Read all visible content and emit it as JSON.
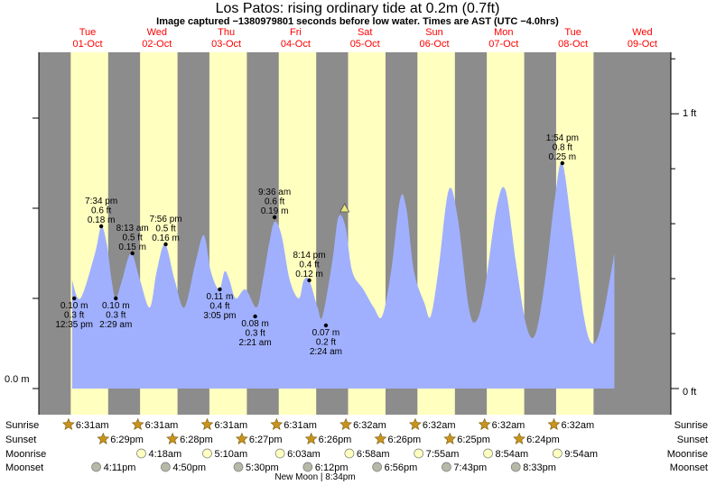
{
  "header": {
    "title": "Los Patos: rising  ordinary tide at 0.2m (0.7ft)",
    "subtitle": "Image captured −1380979801 seconds before low water. Times are AST (UTC −4.0hrs)"
  },
  "chart_data": {
    "type": "area",
    "days": [
      {
        "dow": "Tue",
        "date": "01-Oct"
      },
      {
        "dow": "Wed",
        "date": "02-Oct"
      },
      {
        "dow": "Thu",
        "date": "03-Oct"
      },
      {
        "dow": "Fri",
        "date": "04-Oct"
      },
      {
        "dow": "Sat",
        "date": "05-Oct"
      },
      {
        "dow": "Sun",
        "date": "06-Oct"
      },
      {
        "dow": "Mon",
        "date": "07-Oct"
      },
      {
        "dow": "Tue",
        "date": "08-Oct"
      },
      {
        "dow": "Wed",
        "date": "09-Oct"
      }
    ],
    "y_left_label": "0.0 m",
    "y_right_labels": [
      "1 ft",
      "0 ft"
    ],
    "ylim_m": [
      -0.01,
      0.37
    ],
    "tide_points": [
      {
        "day": 0.0,
        "h": 0.12
      },
      {
        "day": 0.12,
        "h": 0.1
      },
      {
        "day": 0.33,
        "h": 0.15
      },
      {
        "day": 0.42,
        "h": 0.18
      },
      {
        "day": 0.5,
        "h": 0.16
      },
      {
        "day": 0.57,
        "h": 0.12
      },
      {
        "day": 0.63,
        "h": 0.1
      },
      {
        "day": 0.72,
        "h": 0.12
      },
      {
        "day": 0.85,
        "h": 0.15
      },
      {
        "day": 0.98,
        "h": 0.12
      },
      {
        "day": 1.12,
        "h": 0.09
      },
      {
        "day": 1.22,
        "h": 0.13
      },
      {
        "day": 1.34,
        "h": 0.16
      },
      {
        "day": 1.48,
        "h": 0.12
      },
      {
        "day": 1.62,
        "h": 0.09
      },
      {
        "day": 1.78,
        "h": 0.14
      },
      {
        "day": 1.9,
        "h": 0.17
      },
      {
        "day": 2.0,
        "h": 0.13
      },
      {
        "day": 2.12,
        "h": 0.11
      },
      {
        "day": 2.2,
        "h": 0.13
      },
      {
        "day": 2.27,
        "h": 0.12
      },
      {
        "day": 2.36,
        "h": 0.1
      },
      {
        "day": 2.5,
        "h": 0.11
      },
      {
        "day": 2.66,
        "h": 0.09
      },
      {
        "day": 2.75,
        "h": 0.12
      },
      {
        "day": 2.84,
        "h": 0.16
      },
      {
        "day": 2.92,
        "h": 0.185
      },
      {
        "day": 3.02,
        "h": 0.17
      },
      {
        "day": 3.14,
        "h": 0.12
      },
      {
        "day": 3.27,
        "h": 0.1
      },
      {
        "day": 3.34,
        "h": 0.12
      },
      {
        "day": 3.42,
        "h": 0.12
      },
      {
        "day": 3.54,
        "h": 0.09
      },
      {
        "day": 3.61,
        "h": 0.08
      },
      {
        "day": 3.75,
        "h": 0.14
      },
      {
        "day": 3.84,
        "h": 0.19
      },
      {
        "day": 3.94,
        "h": 0.18
      },
      {
        "day": 4.04,
        "h": 0.13
      },
      {
        "day": 4.2,
        "h": 0.11
      },
      {
        "day": 4.35,
        "h": 0.09
      },
      {
        "day": 4.47,
        "h": 0.08
      },
      {
        "day": 4.6,
        "h": 0.13
      },
      {
        "day": 4.73,
        "h": 0.21
      },
      {
        "day": 4.82,
        "h": 0.2
      },
      {
        "day": 4.93,
        "h": 0.13
      },
      {
        "day": 5.08,
        "h": 0.095
      },
      {
        "day": 5.17,
        "h": 0.08
      },
      {
        "day": 5.28,
        "h": 0.13
      },
      {
        "day": 5.43,
        "h": 0.22
      },
      {
        "day": 5.56,
        "h": 0.19
      },
      {
        "day": 5.72,
        "h": 0.09
      },
      {
        "day": 5.83,
        "h": 0.075
      },
      {
        "day": 5.95,
        "h": 0.11
      },
      {
        "day": 6.12,
        "h": 0.2
      },
      {
        "day": 6.25,
        "h": 0.22
      },
      {
        "day": 6.4,
        "h": 0.14
      },
      {
        "day": 6.55,
        "h": 0.07
      },
      {
        "day": 6.68,
        "h": 0.06
      },
      {
        "day": 6.82,
        "h": 0.12
      },
      {
        "day": 6.96,
        "h": 0.21
      },
      {
        "day": 7.07,
        "h": 0.25
      },
      {
        "day": 7.22,
        "h": 0.17
      },
      {
        "day": 7.38,
        "h": 0.08
      },
      {
        "day": 7.5,
        "h": 0.05
      },
      {
        "day": 7.63,
        "h": 0.07
      },
      {
        "day": 7.82,
        "h": 0.15
      }
    ],
    "extremes": [
      {
        "day": 0.03,
        "h": 0.1,
        "pos": "below",
        "lines": [
          "0.10 m",
          "0.3 ft",
          "12:35 pm"
        ]
      },
      {
        "day": 0.42,
        "h": 0.18,
        "pos": "above",
        "lines": [
          "7:34 pm",
          "0.6 ft",
          "0.18 m"
        ]
      },
      {
        "day": 0.63,
        "h": 0.1,
        "pos": "below",
        "lines": [
          "0.10 m",
          "0.3 ft",
          "2:29 am"
        ]
      },
      {
        "day": 0.87,
        "h": 0.15,
        "pos": "above",
        "lines": [
          "8:13 am",
          "0.5 ft",
          "0.15 m"
        ]
      },
      {
        "day": 1.35,
        "h": 0.16,
        "pos": "above",
        "lines": [
          "7:56 pm",
          "0.5 ft",
          "0.16 m"
        ]
      },
      {
        "day": 2.13,
        "h": 0.11,
        "pos": "below",
        "lines": [
          "0.11 m",
          "0.4 ft",
          "3:05 pm"
        ]
      },
      {
        "day": 2.64,
        "h": 0.08,
        "pos": "below",
        "lines": [
          "0.08 m",
          "0.3 ft",
          "2:21 am"
        ]
      },
      {
        "day": 2.92,
        "h": 0.19,
        "pos": "above",
        "lines": [
          "9:36 am",
          "0.6 ft",
          "0.19 m"
        ]
      },
      {
        "day": 3.42,
        "h": 0.12,
        "pos": "above",
        "lines": [
          "8:14 pm",
          "0.4 ft",
          "0.12 m"
        ]
      },
      {
        "day": 3.66,
        "h": 0.07,
        "pos": "below",
        "lines": [
          "0.07 m",
          "0.2 ft",
          "2:24 am"
        ]
      },
      {
        "day": 7.07,
        "h": 0.25,
        "pos": "above",
        "lines": [
          "1:54 pm",
          "0.8 ft",
          "0.25 m"
        ]
      }
    ],
    "current_marker": {
      "day": 3.93,
      "h": 0.2
    },
    "rows": {
      "labels": [
        "Sunrise",
        "Sunset",
        "Moonrise",
        "Moonset"
      ],
      "sunrise": [
        {
          "day": 0.0,
          "t": "6:31am"
        },
        {
          "day": 1.0,
          "t": "6:31am"
        },
        {
          "day": 2.0,
          "t": "6:31am"
        },
        {
          "day": 3.0,
          "t": "6:31am"
        },
        {
          "day": 4.0,
          "t": "6:32am"
        },
        {
          "day": 5.0,
          "t": "6:32am"
        },
        {
          "day": 6.0,
          "t": "6:32am"
        },
        {
          "day": 7.0,
          "t": "6:32am"
        }
      ],
      "sunset": [
        {
          "day": 0.5,
          "t": "6:29pm"
        },
        {
          "day": 1.5,
          "t": "6:28pm"
        },
        {
          "day": 2.5,
          "t": "6:27pm"
        },
        {
          "day": 3.5,
          "t": "6:26pm"
        },
        {
          "day": 4.5,
          "t": "6:26pm"
        },
        {
          "day": 5.5,
          "t": "6:25pm"
        },
        {
          "day": 6.5,
          "t": "6:24pm"
        }
      ],
      "moonrise": [
        {
          "day": 1.05,
          "t": "4:18am"
        },
        {
          "day": 2.0,
          "t": "5:10am"
        },
        {
          "day": 3.05,
          "t": "6:03am"
        },
        {
          "day": 4.05,
          "t": "6:58am"
        },
        {
          "day": 5.05,
          "t": "7:55am"
        },
        {
          "day": 6.05,
          "t": "8:54am"
        },
        {
          "day": 7.05,
          "t": "9:54am"
        }
      ],
      "moonset": [
        {
          "day": 0.4,
          "t": "4:11pm"
        },
        {
          "day": 1.4,
          "t": "4:50pm"
        },
        {
          "day": 2.45,
          "t": "5:30pm"
        },
        {
          "day": 3.45,
          "t": "6:12pm"
        },
        {
          "day": 4.45,
          "t": "6:56pm"
        },
        {
          "day": 5.45,
          "t": "7:43pm"
        },
        {
          "day": 6.45,
          "t": "8:33pm"
        }
      ]
    },
    "note": "New Moon | 8:34pm"
  },
  "colors": {
    "night": "#8c8c8c",
    "day": "#ffffc0",
    "tide": "#a0b0ff",
    "day_label": "#ff0000",
    "marker": "#e8e880",
    "star": "#c8941c",
    "moonrise": "#ffffc0",
    "moonset": "#b8b8a8"
  }
}
